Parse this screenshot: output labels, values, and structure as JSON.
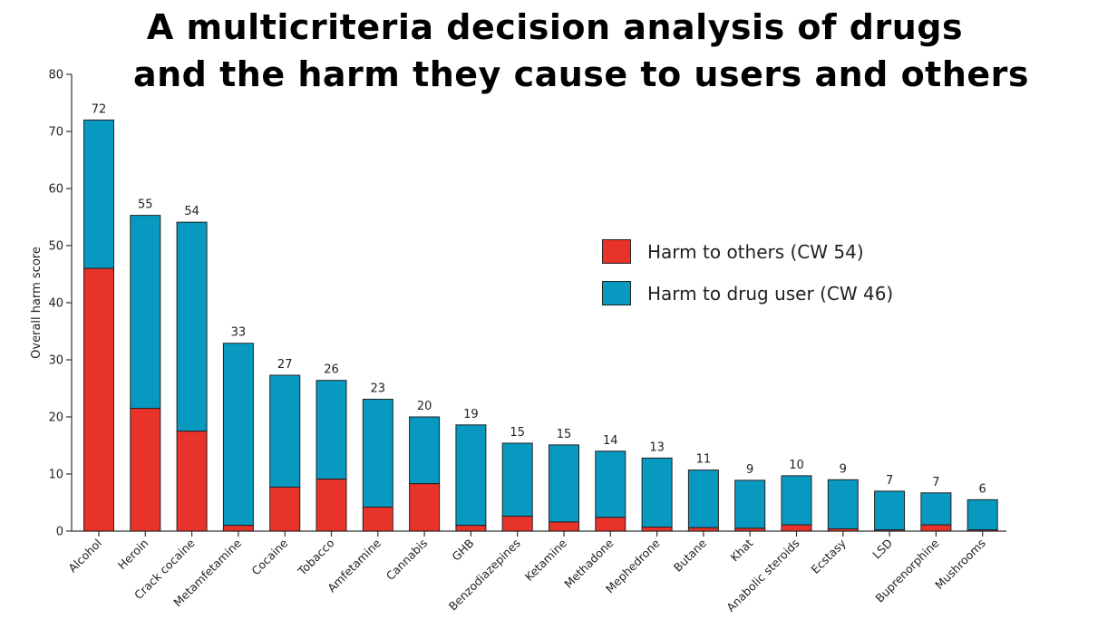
{
  "title_line1": "A multicriteria decision analysis of drugs",
  "title_line2": "and the harm they cause to users and others",
  "colors": {
    "others": "#e8332a",
    "user": "#0899c0"
  },
  "chart_data": {
    "type": "bar",
    "stacked": true,
    "ylabel": "Overall harm score",
    "ylim": [
      0,
      80
    ],
    "yticks": [
      0,
      10,
      20,
      30,
      40,
      50,
      60,
      70,
      80
    ],
    "categories": [
      "Alcohol",
      "Heroin",
      "Crack cocaine",
      "Metamfetamine",
      "Cocaine",
      "Tobacco",
      "Amfetamine",
      "Cannabis",
      "GHB",
      "Benzodiazepines",
      "Ketamine",
      "Methadone",
      "Mephedrone",
      "Butane",
      "Khat",
      "Anabolic steroids",
      "Ecstasy",
      "LSD",
      "Buprenorphine",
      "Mushrooms"
    ],
    "series": [
      {
        "name": "Harm to others (CW 54)",
        "key": "others",
        "values": [
          46,
          21.5,
          17.5,
          1,
          7.7,
          9.1,
          4.2,
          8.3,
          1,
          2.6,
          1.6,
          2.4,
          0.7,
          0.6,
          0.5,
          1.1,
          0.4,
          0.2,
          1.1,
          0.2
        ]
      },
      {
        "name": "Harm to drug user (CW 46)",
        "key": "user",
        "values": [
          26,
          33.8,
          36.6,
          31.9,
          19.6,
          17.3,
          18.9,
          11.7,
          17.6,
          12.8,
          13.5,
          11.6,
          12.1,
          10.1,
          8.4,
          8.6,
          8.6,
          6.8,
          5.6,
          5.3
        ]
      }
    ],
    "totals": [
      "72",
      "55",
      "54",
      "33",
      "27",
      "26",
      "23",
      "20",
      "19",
      "15",
      "15",
      "14",
      "13",
      "11",
      "9",
      "10",
      "9",
      "7",
      "7",
      "6"
    ],
    "legend": [
      {
        "key": "others",
        "label": "Harm to others (CW 54)"
      },
      {
        "key": "user",
        "label": "Harm to drug user (CW 46)"
      }
    ]
  }
}
